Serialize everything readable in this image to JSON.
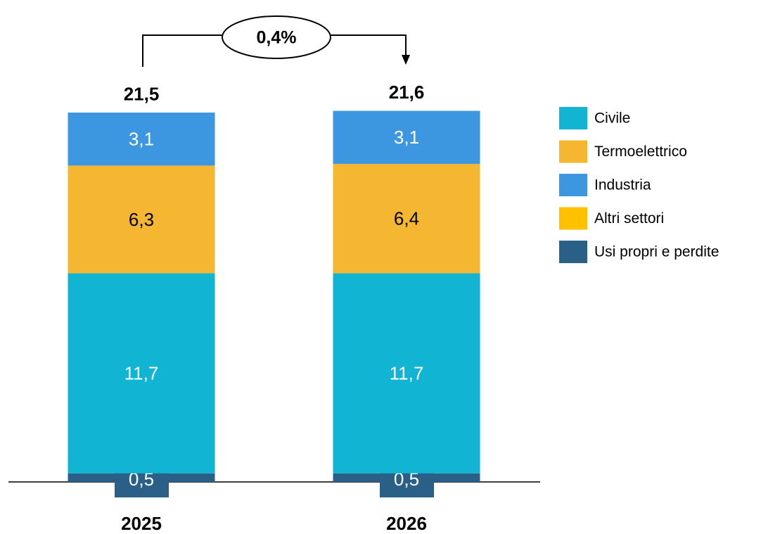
{
  "chart_data": {
    "type": "stacked_bar",
    "categories": [
      "2025",
      "2026"
    ],
    "series": [
      {
        "name": "Civile",
        "color": "#12b4d4",
        "values": [
          11.7,
          11.7
        ],
        "value_labels": [
          "11,7",
          "11,7"
        ]
      },
      {
        "name": "Termoelettrico",
        "color": "#f5b731",
        "values": [
          6.3,
          6.4
        ],
        "value_labels": [
          "6,3",
          "6,4"
        ]
      },
      {
        "name": "Industria",
        "color": "#3d96e0",
        "values": [
          3.1,
          3.1
        ],
        "value_labels": [
          "3,1",
          "3,1"
        ]
      },
      {
        "name": "Altri settori",
        "color": "#ffc000",
        "values": [
          null,
          null
        ]
      },
      {
        "name": "Usi propri e perdite",
        "color": "#2a6087",
        "values": [
          0.5,
          0.5
        ],
        "value_labels": [
          "0,5",
          "0,5"
        ]
      }
    ],
    "totals": [
      21.5,
      21.6
    ],
    "total_labels": [
      "21,5",
      "21,6"
    ],
    "annotation": "0,4%"
  }
}
